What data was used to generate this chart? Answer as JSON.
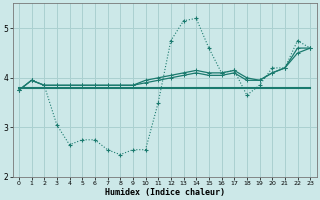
{
  "xlabel": "Humidex (Indice chaleur)",
  "bg_color": "#cce8e8",
  "grid_color": "#aad0d0",
  "line_color": "#1a7a6e",
  "x": [
    0,
    1,
    2,
    3,
    4,
    5,
    6,
    7,
    8,
    9,
    10,
    11,
    12,
    13,
    14,
    15,
    16,
    17,
    18,
    19,
    20,
    21,
    22,
    23
  ],
  "line1_dotted": [
    3.75,
    3.95,
    3.85,
    3.05,
    2.65,
    2.75,
    2.75,
    2.55,
    2.45,
    2.55,
    2.55,
    3.5,
    4.75,
    5.15,
    5.2,
    4.6,
    4.1,
    4.15,
    3.65,
    3.85,
    4.2,
    4.2,
    4.75,
    4.6
  ],
  "line2_flat": [
    3.8,
    3.8,
    3.8,
    3.8,
    3.8,
    3.8,
    3.8,
    3.8,
    3.8,
    3.8,
    3.8,
    3.8,
    3.8,
    3.8,
    3.8,
    3.8,
    3.8,
    3.8,
    3.8,
    3.8,
    3.8,
    3.8,
    3.8,
    3.8
  ],
  "line3_rising": [
    3.75,
    3.95,
    3.85,
    3.85,
    3.85,
    3.85,
    3.85,
    3.85,
    3.85,
    3.85,
    3.9,
    3.95,
    4.0,
    4.05,
    4.1,
    4.05,
    4.05,
    4.1,
    3.95,
    3.95,
    4.1,
    4.2,
    4.5,
    4.6
  ],
  "line4_mid": [
    3.75,
    3.95,
    3.85,
    3.85,
    3.85,
    3.85,
    3.85,
    3.85,
    3.85,
    3.85,
    3.95,
    4.0,
    4.05,
    4.1,
    4.15,
    4.1,
    4.1,
    4.15,
    4.0,
    3.95,
    4.1,
    4.2,
    4.6,
    4.6
  ],
  "ylim": [
    2.0,
    5.5
  ],
  "yticks": [
    2,
    3,
    4,
    5
  ],
  "xticks": [
    0,
    1,
    2,
    3,
    4,
    5,
    6,
    7,
    8,
    9,
    10,
    11,
    12,
    13,
    14,
    15,
    16,
    17,
    18,
    19,
    20,
    21,
    22,
    23
  ]
}
